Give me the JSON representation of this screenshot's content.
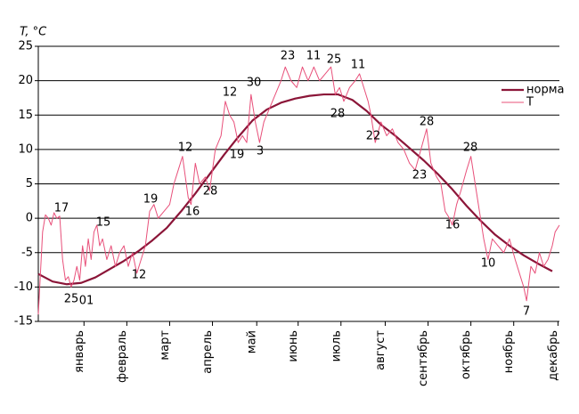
{
  "chart_data": {
    "type": "line",
    "ylabel": "T, °C",
    "xlim": [
      0,
      365
    ],
    "ylim": [
      -15,
      25
    ],
    "yticks": [
      25,
      20,
      15,
      10,
      5,
      0,
      -5,
      -10,
      -15
    ],
    "xticks": [
      {
        "value": 32,
        "label": "январь"
      },
      {
        "value": 62,
        "label": "февраль"
      },
      {
        "value": 92,
        "label": "март"
      },
      {
        "value": 122,
        "label": "апрель"
      },
      {
        "value": 153,
        "label": "май"
      },
      {
        "value": 182,
        "label": "июнь"
      },
      {
        "value": 212,
        "label": "июль"
      },
      {
        "value": 243,
        "label": "август"
      },
      {
        "value": 273,
        "label": "сентябрь"
      },
      {
        "value": 303,
        "label": "октябрь"
      },
      {
        "value": 333,
        "label": "ноябрь"
      },
      {
        "value": 364,
        "label": "декабрь"
      }
    ],
    "grid": true,
    "legend": "upper right",
    "series": [
      {
        "name": "норма",
        "color": "#8b1538",
        "x": [
          0,
          10,
          20,
          30,
          40,
          50,
          60,
          70,
          80,
          90,
          100,
          110,
          120,
          130,
          140,
          150,
          160,
          170,
          180,
          190,
          200,
          210,
          220,
          230,
          240,
          250,
          260,
          270,
          280,
          290,
          300,
          310,
          320,
          330,
          340,
          350,
          360
        ],
        "values": [
          -8.1,
          -9.2,
          -9.6,
          -9.4,
          -8.6,
          -7.4,
          -6.2,
          -4.8,
          -3.2,
          -1.4,
          1.0,
          3.6,
          6.4,
          9.2,
          11.8,
          14.2,
          15.8,
          16.8,
          17.4,
          17.8,
          18.0,
          18.0,
          17.2,
          15.6,
          13.6,
          12.0,
          10.2,
          8.4,
          6.4,
          4.2,
          1.8,
          -0.4,
          -2.4,
          -4.0,
          -5.4,
          -6.6,
          -7.7
        ]
      },
      {
        "name": "T",
        "color": "#e8507a",
        "x": [
          0,
          1,
          3,
          5,
          7,
          9,
          11,
          13,
          15,
          17,
          19,
          21,
          23,
          25,
          27,
          29,
          31,
          33,
          35,
          37,
          39,
          41,
          43,
          45,
          48,
          51,
          54,
          57,
          60,
          63,
          66,
          69,
          72,
          75,
          78,
          81,
          84,
          88,
          92,
          95,
          98,
          101,
          103,
          105,
          107,
          110,
          113,
          117,
          120,
          124,
          128,
          131,
          134,
          137,
          140,
          143,
          146,
          149,
          152,
          155,
          158,
          162,
          166,
          170,
          173,
          177,
          181,
          185,
          189,
          193,
          197,
          201,
          205,
          208,
          211,
          214,
          218,
          222,
          225,
          228,
          231,
          233,
          236,
          240,
          244,
          248,
          252,
          256,
          260,
          264,
          268,
          272,
          275,
          279,
          282,
          285,
          288,
          290,
          293,
          296,
          300,
          303,
          306,
          309,
          312,
          315,
          318,
          322,
          326,
          330,
          334,
          337,
          340,
          342,
          345,
          348,
          351,
          354,
          357,
          360,
          362,
          365
        ],
        "values": [
          -14,
          -10,
          -2,
          0.5,
          0,
          -1,
          0.8,
          0,
          0.3,
          -6,
          -9,
          -8.5,
          -10,
          -9,
          -7,
          -9,
          -4,
          -7,
          -3,
          -6,
          -2,
          -1,
          -4,
          -3,
          -6,
          -4,
          -7,
          -5,
          -4,
          -7,
          -5,
          -8,
          -6,
          -4,
          1,
          2,
          0,
          1,
          2,
          5,
          7,
          9,
          6,
          3,
          2,
          8,
          5,
          6,
          4,
          10,
          12,
          17,
          15,
          14,
          11,
          12,
          11,
          18,
          14,
          11,
          14,
          16,
          18,
          20,
          22,
          20,
          19,
          22,
          20,
          22,
          20,
          21,
          22,
          18,
          19,
          17,
          19,
          20,
          21,
          19,
          17,
          15,
          11,
          14,
          12,
          13,
          11,
          10,
          8,
          7,
          10,
          13,
          8,
          6,
          5,
          1,
          0,
          -1,
          2,
          4,
          7,
          9,
          5,
          1,
          -3,
          -6,
          -3,
          -4,
          -5,
          -3,
          -6,
          -8,
          -10,
          -12,
          -7,
          -8,
          -5,
          -7,
          -6,
          -4,
          -2,
          -1
        ]
      }
    ],
    "annotations": [
      "17",
      "25",
      "01",
      "15",
      "12",
      "19",
      "16",
      "12",
      "28",
      "19",
      "12",
      "30",
      "3",
      "23",
      "11",
      "25",
      "28",
      "11",
      "22",
      "28",
      "23",
      "16",
      "28",
      "10",
      "7"
    ]
  }
}
